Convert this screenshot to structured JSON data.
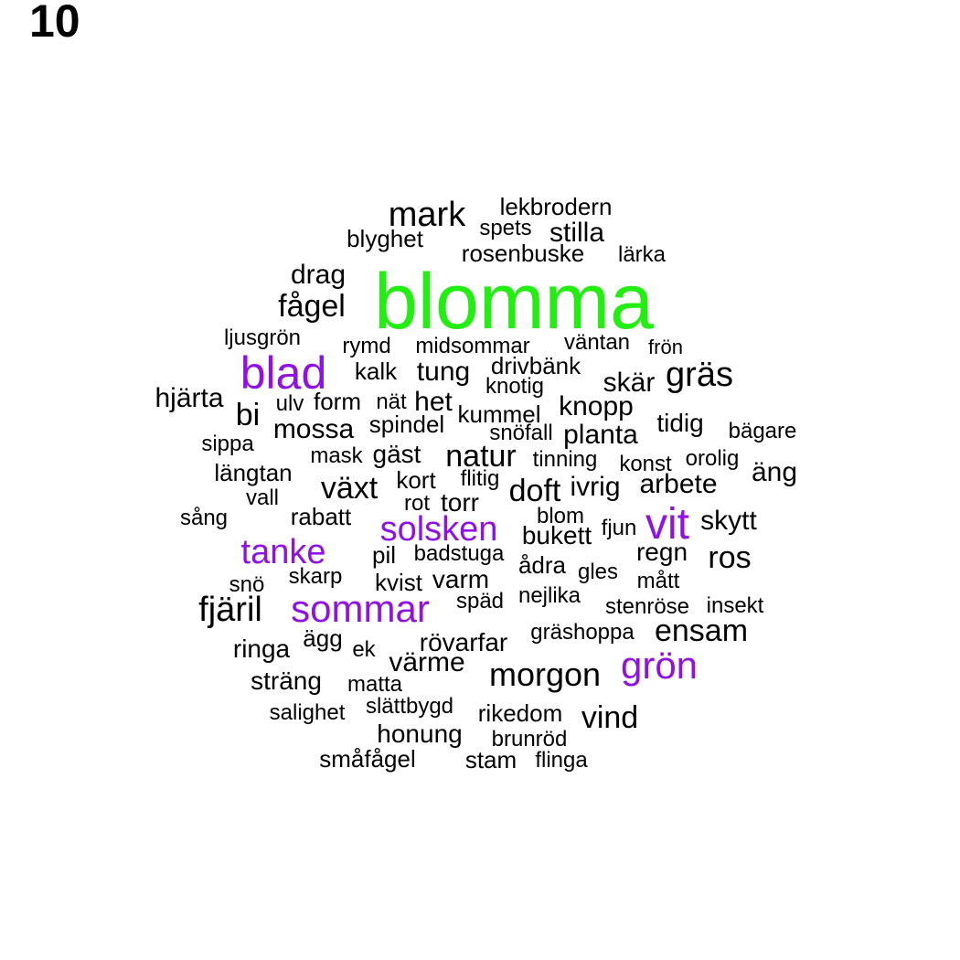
{
  "panel_label": "10",
  "colors": {
    "green": "#22ee11",
    "purple": "#8f11e6",
    "black": "#000000"
  },
  "words": [
    {
      "text": "blomma",
      "color": "green"
    },
    {
      "text": "blad",
      "color": "purple"
    },
    {
      "text": "vit",
      "color": "purple"
    },
    {
      "text": "sommar",
      "color": "purple"
    },
    {
      "text": "solsken",
      "color": "purple"
    },
    {
      "text": "tanke",
      "color": "purple"
    },
    {
      "text": "grön",
      "color": "purple"
    },
    {
      "text": "mark",
      "color": "black"
    },
    {
      "text": "lekbrodern",
      "color": "black"
    },
    {
      "text": "spets",
      "color": "black"
    },
    {
      "text": "stilla",
      "color": "black"
    },
    {
      "text": "blyghet",
      "color": "black"
    },
    {
      "text": "rosenbuske",
      "color": "black"
    },
    {
      "text": "lärka",
      "color": "black"
    },
    {
      "text": "drag",
      "color": "black"
    },
    {
      "text": "fågel",
      "color": "black"
    },
    {
      "text": "ljusgrön",
      "color": "black"
    },
    {
      "text": "rymd",
      "color": "black"
    },
    {
      "text": "midsommar",
      "color": "black"
    },
    {
      "text": "väntan",
      "color": "black"
    },
    {
      "text": "frön",
      "color": "black"
    },
    {
      "text": "kalk",
      "color": "black"
    },
    {
      "text": "tung",
      "color": "black"
    },
    {
      "text": "drivbänk",
      "color": "black"
    },
    {
      "text": "knotig",
      "color": "black"
    },
    {
      "text": "skär",
      "color": "black"
    },
    {
      "text": "gräs",
      "color": "black"
    },
    {
      "text": "hjärta",
      "color": "black"
    },
    {
      "text": "ulv",
      "color": "black"
    },
    {
      "text": "form",
      "color": "black"
    },
    {
      "text": "nät",
      "color": "black"
    },
    {
      "text": "het",
      "color": "black"
    },
    {
      "text": "kummel",
      "color": "black"
    },
    {
      "text": "knopp",
      "color": "black"
    },
    {
      "text": "bi",
      "color": "black"
    },
    {
      "text": "mossa",
      "color": "black"
    },
    {
      "text": "spindel",
      "color": "black"
    },
    {
      "text": "snöfall",
      "color": "black"
    },
    {
      "text": "planta",
      "color": "black"
    },
    {
      "text": "tidig",
      "color": "black"
    },
    {
      "text": "bägare",
      "color": "black"
    },
    {
      "text": "sippa",
      "color": "black"
    },
    {
      "text": "mask",
      "color": "black"
    },
    {
      "text": "gäst",
      "color": "black"
    },
    {
      "text": "natur",
      "color": "black"
    },
    {
      "text": "tinning",
      "color": "black"
    },
    {
      "text": "konst",
      "color": "black"
    },
    {
      "text": "orolig",
      "color": "black"
    },
    {
      "text": "äng",
      "color": "black"
    },
    {
      "text": "längtan",
      "color": "black"
    },
    {
      "text": "växt",
      "color": "black"
    },
    {
      "text": "kort",
      "color": "black"
    },
    {
      "text": "flitig",
      "color": "black"
    },
    {
      "text": "doft",
      "color": "black"
    },
    {
      "text": "ivrig",
      "color": "black"
    },
    {
      "text": "arbete",
      "color": "black"
    },
    {
      "text": "vall",
      "color": "black"
    },
    {
      "text": "rot",
      "color": "black"
    },
    {
      "text": "torr",
      "color": "black"
    },
    {
      "text": "blom",
      "color": "black"
    },
    {
      "text": "sång",
      "color": "black"
    },
    {
      "text": "rabatt",
      "color": "black"
    },
    {
      "text": "bukett",
      "color": "black"
    },
    {
      "text": "fjun",
      "color": "black"
    },
    {
      "text": "skytt",
      "color": "black"
    },
    {
      "text": "pil",
      "color": "black"
    },
    {
      "text": "badstuga",
      "color": "black"
    },
    {
      "text": "regn",
      "color": "black"
    },
    {
      "text": "ros",
      "color": "black"
    },
    {
      "text": "ådra",
      "color": "black"
    },
    {
      "text": "skarp",
      "color": "black"
    },
    {
      "text": "snö",
      "color": "black"
    },
    {
      "text": "kvist",
      "color": "black"
    },
    {
      "text": "varm",
      "color": "black"
    },
    {
      "text": "gles",
      "color": "black"
    },
    {
      "text": "mått",
      "color": "black"
    },
    {
      "text": "fjäril",
      "color": "black"
    },
    {
      "text": "späd",
      "color": "black"
    },
    {
      "text": "nejlika",
      "color": "black"
    },
    {
      "text": "stenröse",
      "color": "black"
    },
    {
      "text": "insekt",
      "color": "black"
    },
    {
      "text": "ägg",
      "color": "black"
    },
    {
      "text": "gräshoppa",
      "color": "black"
    },
    {
      "text": "ensam",
      "color": "black"
    },
    {
      "text": "ringa",
      "color": "black"
    },
    {
      "text": "ek",
      "color": "black"
    },
    {
      "text": "rövarfar",
      "color": "black"
    },
    {
      "text": "värme",
      "color": "black"
    },
    {
      "text": "morgon",
      "color": "black"
    },
    {
      "text": "sträng",
      "color": "black"
    },
    {
      "text": "matta",
      "color": "black"
    },
    {
      "text": "salighet",
      "color": "black"
    },
    {
      "text": "slättbygd",
      "color": "black"
    },
    {
      "text": "rikedom",
      "color": "black"
    },
    {
      "text": "vind",
      "color": "black"
    },
    {
      "text": "honung",
      "color": "black"
    },
    {
      "text": "brunröd",
      "color": "black"
    },
    {
      "text": "småfågel",
      "color": "black"
    },
    {
      "text": "stam",
      "color": "black"
    },
    {
      "text": "flinga",
      "color": "black"
    }
  ]
}
